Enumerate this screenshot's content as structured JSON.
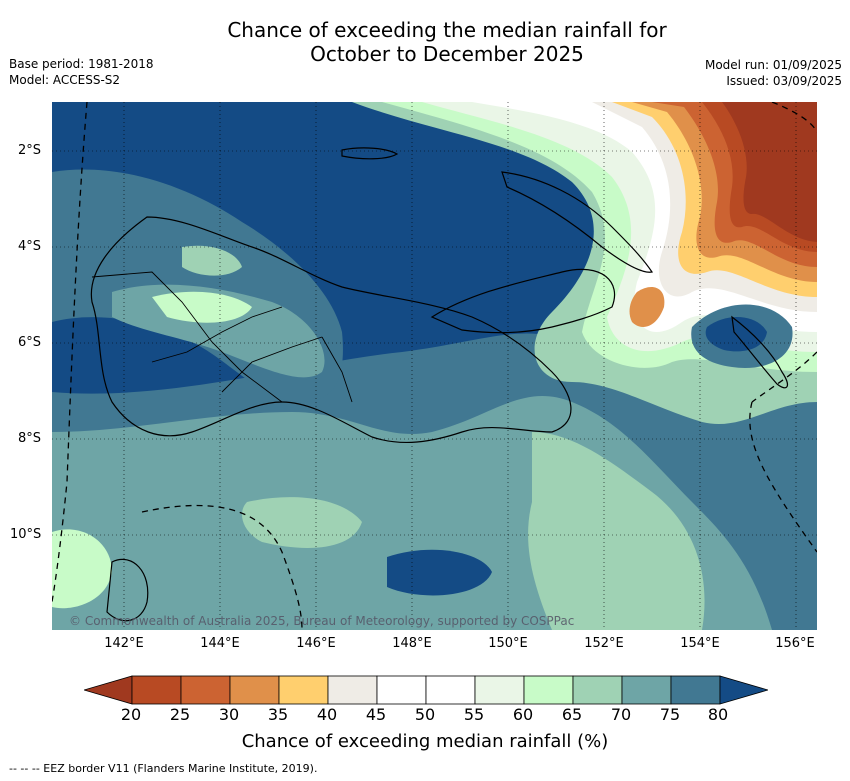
{
  "title": {
    "line1": "Chance of exceeding the median rainfall for",
    "line2": "October to December 2025"
  },
  "meta_left": {
    "base_period": "Base period: 1981-2018",
    "model": "Model: ACCESS-S2"
  },
  "meta_right": {
    "model_run": "Model run: 01/09/2025",
    "issued": "Issued: 03/09/2025"
  },
  "map": {
    "lat_labels": [
      "2°S",
      "4°S",
      "6°S",
      "8°S",
      "10°S"
    ],
    "lon_labels": [
      "142°E",
      "144°E",
      "146°E",
      "148°E",
      "150°E",
      "152°E",
      "154°E",
      "156°E"
    ],
    "copyright": "© Commonwealth of Australia 2025, Bureau of Meteorology, supported by COSPPac"
  },
  "colorbar": {
    "labels": [
      "20",
      "25",
      "30",
      "35",
      "40",
      "45",
      "50",
      "55",
      "60",
      "65",
      "70",
      "75",
      "80"
    ],
    "colors": [
      "#a0391f",
      "#b84a23",
      "#cc6332",
      "#e0904a",
      "#ffcf6e",
      "#efece6",
      "#ffffff",
      "#ffffff",
      "#eaf6e7",
      "#c8fbc8",
      "#9fd2b4",
      "#6ea5a6",
      "#417892",
      "#144b85"
    ],
    "title": "Chance of exceeding median rainfall (%)"
  },
  "footer": {
    "eez_legend": "-- -- -- EEZ border V11 (Flanders Marine Institute, 2019)."
  }
}
